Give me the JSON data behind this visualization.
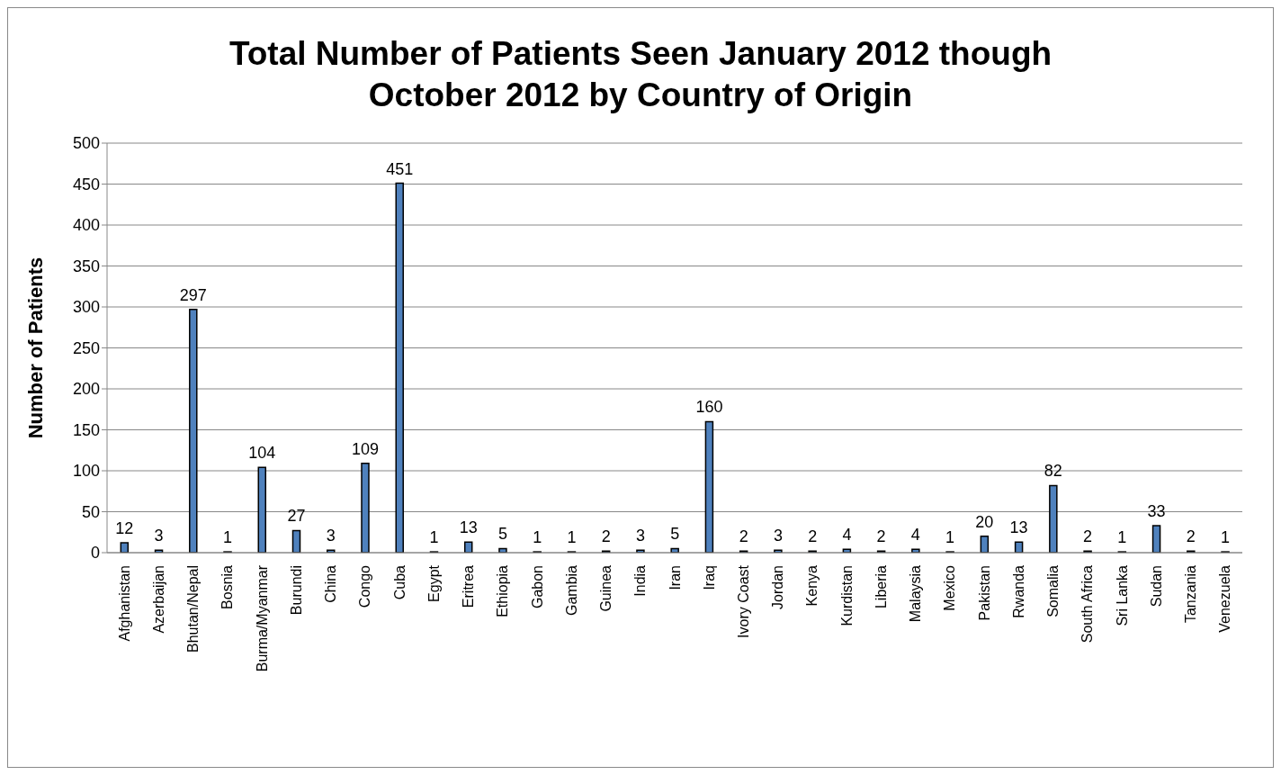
{
  "chart_data": {
    "type": "bar",
    "title": "Total Number of Patients Seen January 2012 though October 2012 by Country of Origin",
    "ylabel": "Number of Patients",
    "categories": [
      "Afghanistan",
      "Azerbaijan",
      "Bhutan/Nepal",
      "Bosnia",
      "Burma/Myanmar",
      "Burundi",
      "China",
      "Congo",
      "Cuba",
      "Egypt",
      "Eritrea",
      "Ethiopia",
      "Gabon",
      "Gambia",
      "Guinea",
      "India",
      "Iran",
      "Iraq",
      "Ivory Coast",
      "Jordan",
      "Kenya",
      "Kurdistan",
      "Liberia",
      "Malaysia",
      "Mexico",
      "Pakistan",
      "Rwanda",
      "Somalia",
      "South Africa",
      "Sri Lanka",
      "Sudan",
      "Tanzania",
      "Venezuela"
    ],
    "values": [
      12,
      3,
      297,
      1,
      104,
      27,
      3,
      109,
      451,
      1,
      13,
      5,
      1,
      1,
      2,
      3,
      5,
      160,
      2,
      3,
      2,
      4,
      2,
      4,
      1,
      20,
      13,
      82,
      2,
      1,
      33,
      2,
      1
    ],
    "color": "#4f81bd",
    "ylim": [
      0,
      500
    ],
    "yticks": [
      0,
      50,
      100,
      150,
      200,
      250,
      300,
      350,
      400,
      450,
      500
    ],
    "grid": "y",
    "data_labels": true
  }
}
